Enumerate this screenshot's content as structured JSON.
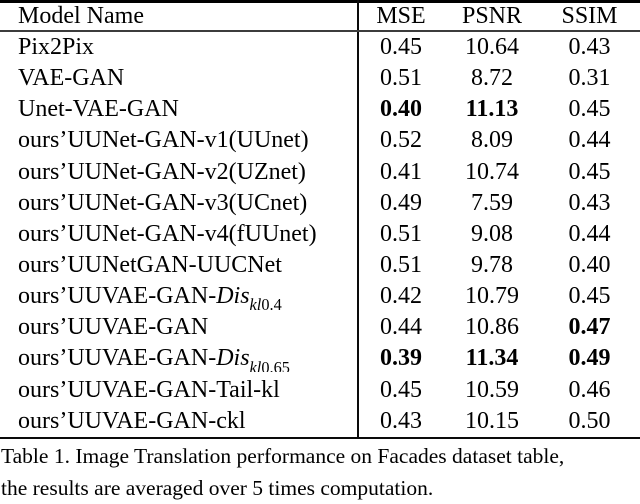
{
  "colors": {
    "text": "#000000",
    "background": "#ffffff",
    "rule": "#000000"
  },
  "table": {
    "headers": [
      "Model Name",
      "MSE",
      "PSNR",
      "SSIM"
    ],
    "rows": [
      {
        "model": [
          {
            "text": "Pix2Pix"
          }
        ],
        "values": [
          {
            "text": "0.45"
          },
          {
            "text": "10.64"
          },
          {
            "text": "0.43"
          }
        ]
      },
      {
        "model": [
          {
            "text": "VAE-GAN"
          }
        ],
        "values": [
          {
            "text": "0.51"
          },
          {
            "text": "8.72"
          },
          {
            "text": "0.31"
          }
        ]
      },
      {
        "model": [
          {
            "text": "Unet-VAE-GAN"
          }
        ],
        "values": [
          {
            "text": "0.40",
            "bold": true
          },
          {
            "text": "11.13",
            "bold": true
          },
          {
            "text": "0.45"
          }
        ]
      },
      {
        "model": [
          {
            "text": "ours’UUNet-GAN-v1(UUnet)"
          }
        ],
        "values": [
          {
            "text": "0.52"
          },
          {
            "text": "8.09"
          },
          {
            "text": "0.44"
          }
        ]
      },
      {
        "model": [
          {
            "text": "ours’UUNet-GAN-v2(UZnet)"
          }
        ],
        "values": [
          {
            "text": "0.41"
          },
          {
            "text": "10.74"
          },
          {
            "text": "0.45"
          }
        ]
      },
      {
        "model": [
          {
            "text": "ours’UUNet-GAN-v3(UCnet)"
          }
        ],
        "values": [
          {
            "text": "0.49"
          },
          {
            "text": "7.59"
          },
          {
            "text": "0.43"
          }
        ]
      },
      {
        "model": [
          {
            "text": "ours’UUNet-GAN-v4(fUUnet)"
          }
        ],
        "values": [
          {
            "text": "0.51"
          },
          {
            "text": "9.08"
          },
          {
            "text": "0.44"
          }
        ]
      },
      {
        "model": [
          {
            "text": "ours’UUNetGAN-UUCNet"
          }
        ],
        "values": [
          {
            "text": "0.51"
          },
          {
            "text": "9.78"
          },
          {
            "text": "0.40"
          }
        ]
      },
      {
        "model": [
          {
            "text": "ours’UUVAE-GAN-"
          },
          {
            "text": "Dis",
            "italic": true
          },
          {
            "text": "kl",
            "sub": true,
            "italic": true
          },
          {
            "text": "0.4",
            "sub": true
          }
        ],
        "values": [
          {
            "text": "0.42"
          },
          {
            "text": "10.79"
          },
          {
            "text": "0.45"
          }
        ]
      },
      {
        "model": [
          {
            "text": "ours’UUVAE-GAN"
          }
        ],
        "values": [
          {
            "text": "0.44"
          },
          {
            "text": "10.86"
          },
          {
            "text": "0.47",
            "bold": true
          }
        ]
      },
      {
        "model": [
          {
            "text": "ours’UUVAE-GAN-"
          },
          {
            "text": "Dis",
            "italic": true
          },
          {
            "text": "kl",
            "sub": true,
            "italic": true
          },
          {
            "text": "0.65",
            "sub": true
          }
        ],
        "values": [
          {
            "text": "0.39",
            "bold": true
          },
          {
            "text": "11.34",
            "bold": true
          },
          {
            "text": "0.49",
            "bold": true
          }
        ]
      },
      {
        "model": [
          {
            "text": "ours’UUVAE-GAN-Tail-kl"
          }
        ],
        "values": [
          {
            "text": "0.45"
          },
          {
            "text": "10.59"
          },
          {
            "text": "0.46"
          }
        ]
      },
      {
        "model": [
          {
            "text": "ours’UUVAE-GAN-ckl"
          }
        ],
        "values": [
          {
            "text": "0.43"
          },
          {
            "text": "10.15"
          },
          {
            "text": "0.50"
          }
        ]
      }
    ]
  },
  "caption_lines": [
    "Table 1. Image Translation performance on Facades dataset table,",
    "the results are averaged over 5 times computation."
  ]
}
